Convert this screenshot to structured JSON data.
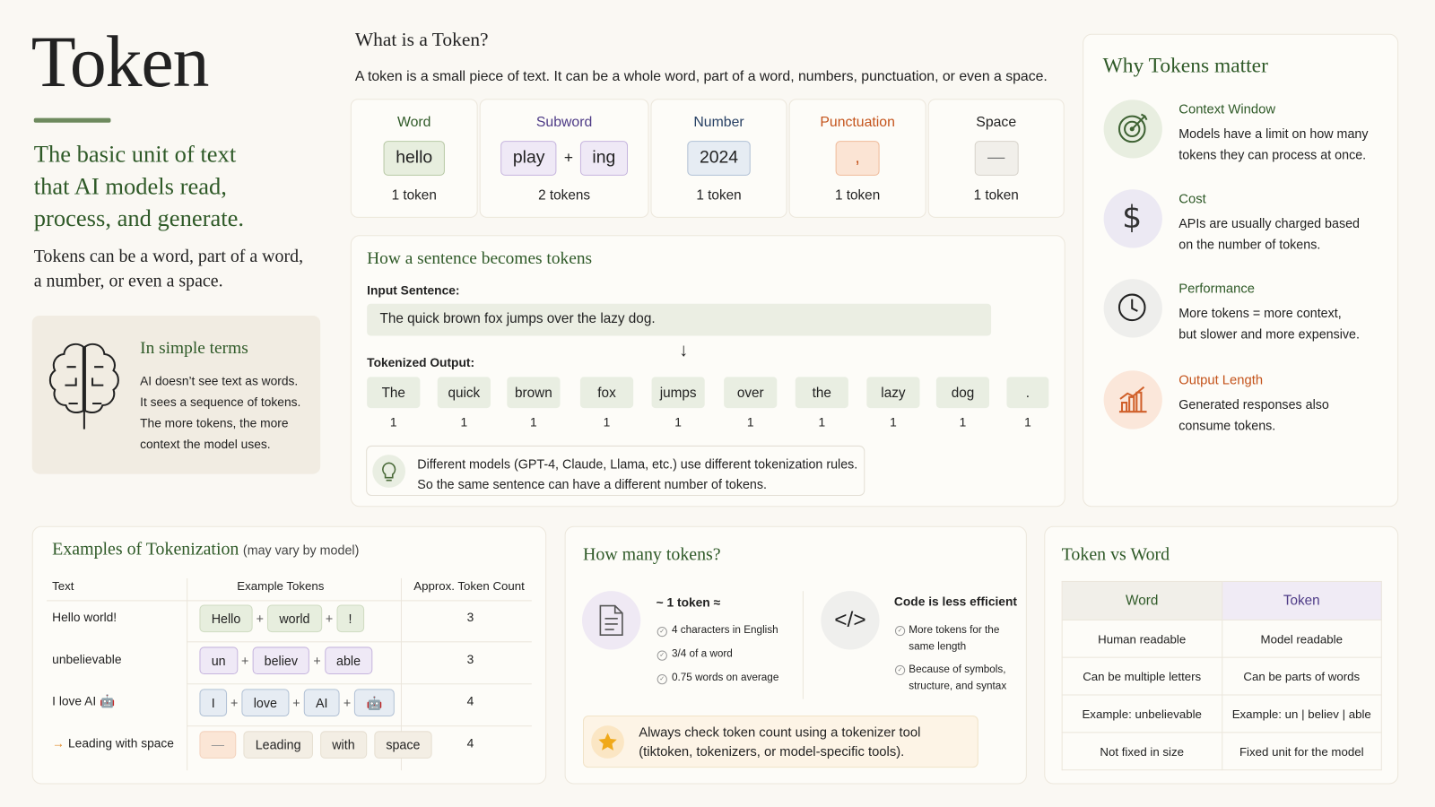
{
  "header": {
    "title": "Token",
    "tagline": [
      "The basic unit of text",
      "that AI models read,",
      "process, and generate."
    ],
    "description": [
      "Tokens can be a word, part of a word,",
      "a number, or even a space."
    ]
  },
  "simple_terms": {
    "title": "In simple terms",
    "lines": [
      "AI doesn’t see text as words.",
      "It sees a sequence of tokens.",
      "The more tokens, the more",
      "context the model uses."
    ]
  },
  "what_is": {
    "title": "What is a Token?",
    "description": "A token is a small piece of text. It can be a whole word, part of a word, numbers, punctuation, or even a space.",
    "joiner": "+",
    "types": [
      {
        "label": "Word",
        "tokens": [
          "hello"
        ],
        "count": "1 token"
      },
      {
        "label": "Subword",
        "tokens": [
          "play",
          "ing"
        ],
        "count": "2 tokens"
      },
      {
        "label": "Number",
        "tokens": [
          "2024"
        ],
        "count": "1 token"
      },
      {
        "label": "Punctuation",
        "tokens": [
          ","
        ],
        "count": "1 token"
      },
      {
        "label": "Space",
        "tokens": [
          "—"
        ],
        "count": "1 token"
      }
    ]
  },
  "sentence": {
    "title": "How a sentence becomes tokens",
    "input_label": "Input Sentence:",
    "input": "The quick brown fox jumps over the lazy dog.",
    "arrow": "↓",
    "output_label": "Tokenized Output:",
    "tokens": [
      "The",
      "quick",
      "brown",
      "fox",
      "jumps",
      "over",
      "the",
      "lazy",
      "dog",
      "."
    ],
    "counts": [
      1,
      1,
      1,
      1,
      1,
      1,
      1,
      1,
      1,
      1
    ],
    "note": [
      "Different models (GPT-4, Claude, Llama, etc.) use different tokenization rules.",
      "So the same sentence can have a different number of tokens."
    ]
  },
  "why": {
    "title": "Why Tokens matter",
    "items": [
      {
        "title": "Context Window",
        "lines": [
          "Models have a limit on how many",
          "tokens they can process at once."
        ]
      },
      {
        "title": "Cost",
        "lines": [
          "APIs are usually charged based",
          "on the number of tokens."
        ]
      },
      {
        "title": "Performance",
        "lines": [
          "More tokens = more context,",
          "but slower and more expensive."
        ]
      },
      {
        "title": "Output Length",
        "lines": [
          "Generated responses also",
          "consume tokens."
        ]
      }
    ]
  },
  "examples": {
    "title": "Examples of Tokenization",
    "subtitle": "(may vary by model)",
    "columns": [
      "Text",
      "Example Tokens",
      "Approx. Token Count"
    ],
    "joiner": "+",
    "rows": [
      {
        "text": "Hello world!",
        "tokens": [
          "Hello",
          "world",
          "!"
        ],
        "count": 3
      },
      {
        "text": "unbelievable",
        "tokens": [
          "un",
          "believ",
          "able"
        ],
        "count": 3
      },
      {
        "text": "I love AI 🤖",
        "tokens": [
          "I",
          "love",
          "AI",
          "🤖"
        ],
        "count": 4
      },
      {
        "marker": "→",
        "text": "Leading with space",
        "tokens": [
          "—",
          "Leading",
          "with",
          "space"
        ],
        "count": 4
      }
    ]
  },
  "how_many": {
    "title": "How many tokens?",
    "approx_title": "~ 1 token ≈",
    "approx": [
      "4 characters in English",
      "3/4 of a word",
      "0.75 words on average"
    ],
    "code_icon": "</>",
    "code_title": "Code is less efficient",
    "code": [
      [
        "More tokens for the",
        "same length"
      ],
      [
        "Because of symbols,",
        "structure, and syntax"
      ]
    ],
    "tip": [
      "Always check token count using a tokenizer tool",
      "(tiktoken, tokenizers, or model-specific tools)."
    ]
  },
  "token_vs_word": {
    "title": "Token vs Word",
    "headers": [
      "Word",
      "Token"
    ],
    "rows": [
      [
        "Human readable",
        "Model readable"
      ],
      [
        "Can be multiple letters",
        "Can be parts of words"
      ],
      [
        "Example: unbelievable",
        "Example: un | believ | able"
      ],
      [
        "Not fixed in size",
        "Fixed unit for the model"
      ]
    ]
  }
}
